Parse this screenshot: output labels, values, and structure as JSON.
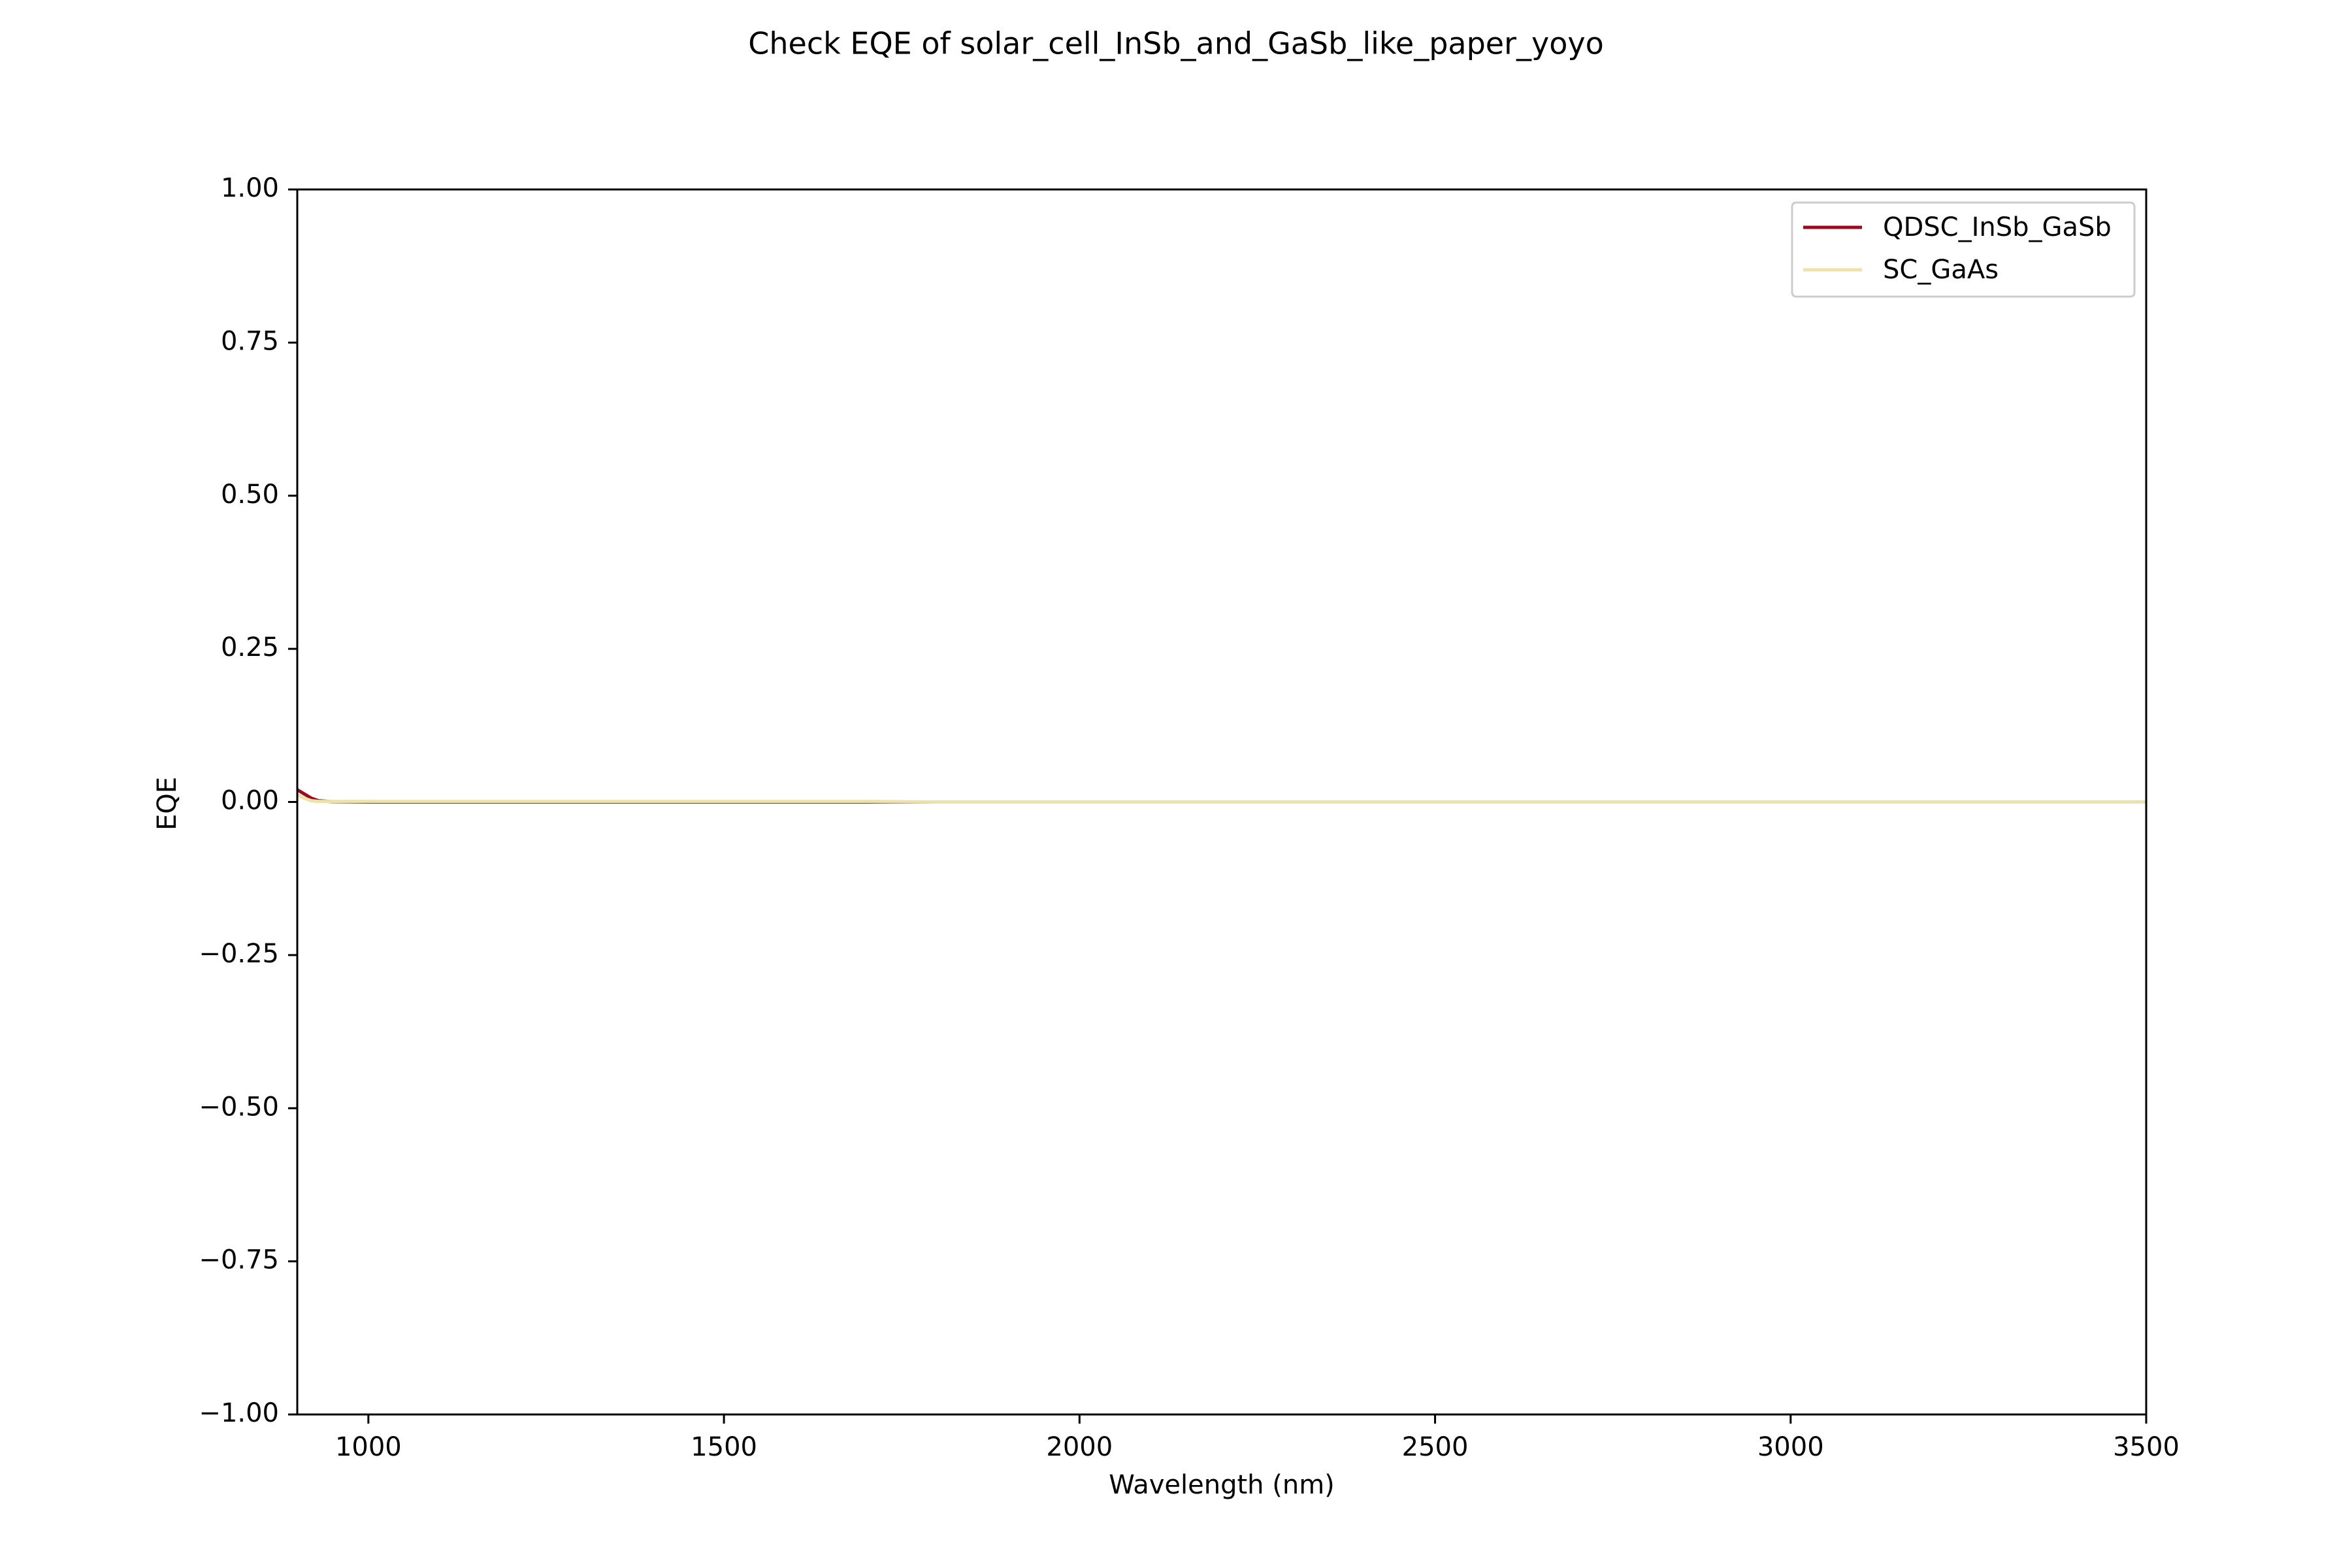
{
  "chart_data": {
    "type": "line",
    "title": "Check EQE of solar_cell_InSb_and_GaSb_like_paper_yoyo",
    "xlabel": "Wavelength (nm)",
    "ylabel": "EQE",
    "xlim": [
      900,
      3500
    ],
    "ylim": [
      -1.0,
      1.0
    ],
    "x_ticks": [
      1000,
      1500,
      2000,
      2500,
      3000,
      3500
    ],
    "x_tick_labels": [
      "1000",
      "1500",
      "2000",
      "2500",
      "3000",
      "3500"
    ],
    "y_ticks": [
      -1.0,
      -0.75,
      -0.5,
      -0.25,
      0.0,
      0.25,
      0.5,
      0.75,
      1.0
    ],
    "y_tick_labels": [
      "−1.00",
      "−0.75",
      "−0.50",
      "−0.25",
      "0.00",
      "0.25",
      "0.50",
      "0.75",
      "1.00"
    ],
    "grid": false,
    "legend_position": "upper right",
    "series": [
      {
        "name": "QDSC_InSb_GaSb",
        "color": "#9b0a1e",
        "x": [
          900,
          910,
          920,
          930,
          950,
          1000,
          1500,
          2000,
          2500,
          3000,
          3500
        ],
        "y": [
          0.02,
          0.013,
          0.006,
          0.002,
          0.0005,
          0.0,
          0.0,
          0.0,
          0.0,
          0.0,
          0.0
        ]
      },
      {
        "name": "SC_GaAs",
        "color": "#ece3aa",
        "x": [
          900,
          910,
          920,
          930,
          1000,
          1500,
          1700,
          1800,
          2000,
          2500,
          3000,
          3500
        ],
        "y": [
          0.012,
          0.006,
          0.002,
          0.001,
          0.001,
          0.001,
          0.001,
          0.0,
          0.0,
          0.0,
          0.0,
          0.0
        ]
      }
    ]
  }
}
